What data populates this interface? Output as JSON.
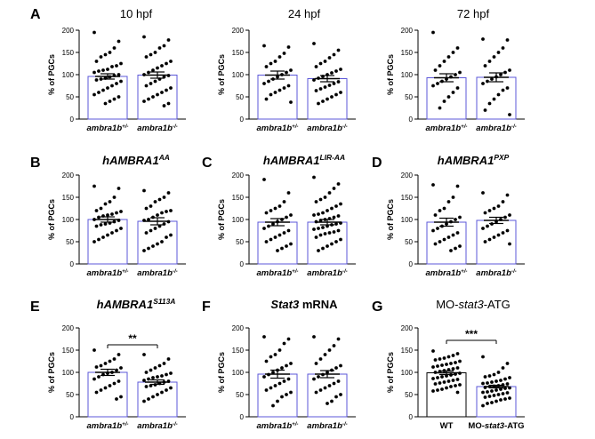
{
  "figure": {
    "panels": [
      {
        "id": "A",
        "letter": "A",
        "title": [
          {
            "t": "10 hpf"
          }
        ],
        "title_style": "plain",
        "categories": [
          {
            "base": "ambra1b",
            "sup": "+/-"
          },
          {
            "base": "ambra1b",
            "sup": "-/-"
          }
        ],
        "significance": null
      },
      {
        "id": "A2",
        "letter": "",
        "title": [
          {
            "t": "24 hpf"
          }
        ],
        "title_style": "plain",
        "categories": [
          {
            "base": "ambra1b",
            "sup": "+/-"
          },
          {
            "base": "ambra1b",
            "sup": "-/-"
          }
        ],
        "significance": null
      },
      {
        "id": "A3",
        "letter": "",
        "title": [
          {
            "t": "72 hpf"
          }
        ],
        "title_style": "plain",
        "categories": [
          {
            "base": "ambra1b",
            "sup": "+/-"
          },
          {
            "base": "ambra1b",
            "sup": "-/-"
          }
        ],
        "significance": null
      },
      {
        "id": "B",
        "letter": "B",
        "title": [
          {
            "t": "hAMBRA1"
          },
          {
            "t": "AA",
            "sup": true
          }
        ],
        "title_style": "italic-bold",
        "categories": [
          {
            "base": "ambra1b",
            "sup": "+/-"
          },
          {
            "base": "ambra1b",
            "sup": "-/-"
          }
        ],
        "significance": null
      },
      {
        "id": "C",
        "letter": "C",
        "title": [
          {
            "t": "hAMBRA1"
          },
          {
            "t": "LIR-AA",
            "sup": true
          }
        ],
        "title_style": "italic-bold",
        "categories": [
          {
            "base": "ambra1b",
            "sup": "+/-"
          },
          {
            "base": "ambra1b",
            "sup": "-/-"
          }
        ],
        "significance": null
      },
      {
        "id": "D",
        "letter": "D",
        "title": [
          {
            "t": "hAMBRA1"
          },
          {
            "t": "PXP",
            "sup": true
          }
        ],
        "title_style": "italic-bold",
        "categories": [
          {
            "base": "ambra1b",
            "sup": "+/-"
          },
          {
            "base": "ambra1b",
            "sup": "-/-"
          }
        ],
        "significance": null
      },
      {
        "id": "E",
        "letter": "E",
        "title": [
          {
            "t": "hAMBRA1"
          },
          {
            "t": "S113A",
            "sup": true
          }
        ],
        "title_style": "italic-bold",
        "categories": [
          {
            "base": "ambra1b",
            "sup": "+/-"
          },
          {
            "base": "ambra1b",
            "sup": "-/-"
          }
        ],
        "significance": "**"
      },
      {
        "id": "F",
        "letter": "F",
        "title": [
          {
            "t": "Stat3",
            "it": true
          },
          {
            "t": " mRNA"
          }
        ],
        "title_style": "bold",
        "categories": [
          {
            "base": "ambra1b",
            "sup": "+/-"
          },
          {
            "base": "ambra1b",
            "sup": "-/-"
          }
        ],
        "significance": null
      },
      {
        "id": "G",
        "letter": "G",
        "title": [
          {
            "t": "MO-"
          },
          {
            "t": "stat3",
            "it": true
          },
          {
            "t": "-ATG"
          }
        ],
        "title_style": "plain",
        "categories": [
          {
            "base": "WT",
            "upright": true
          },
          {
            "segments": [
              {
                "t": "MO-"
              },
              {
                "t": "stat3",
                "it": true
              },
              {
                "t": "-ATG"
              }
            ],
            "upright": true
          }
        ],
        "significance": "***"
      }
    ]
  },
  "chart_data": [
    {
      "panel": "A",
      "type": "scatter",
      "title": "10 hpf",
      "xlabel": "",
      "ylabel": "% of PGCs",
      "ylim": [
        0,
        200
      ],
      "yticks": [
        0,
        50,
        100,
        150,
        200
      ],
      "grid": false,
      "categories": [
        "ambra1b+/-",
        "ambra1b-/-"
      ],
      "bar_means": [
        96,
        99
      ],
      "sem": [
        6,
        7
      ],
      "series": [
        {
          "values": [
            195,
            175,
            160,
            150,
            145,
            140,
            130,
            125,
            120,
            118,
            112,
            110,
            108,
            105,
            100,
            98,
            95,
            92,
            90,
            88,
            85,
            80,
            75,
            70,
            65,
            60,
            55,
            50,
            45,
            40,
            35
          ]
        },
        {
          "values": [
            185,
            178,
            165,
            160,
            150,
            145,
            140,
            130,
            125,
            120,
            115,
            110,
            105,
            100,
            98,
            95,
            90,
            85,
            80,
            75,
            70,
            65,
            60,
            55,
            50,
            45,
            40,
            35,
            30
          ]
        }
      ]
    },
    {
      "panel": "A2",
      "type": "scatter",
      "title": "24 hpf",
      "xlabel": "",
      "ylabel": "% of PGCs",
      "ylim": [
        0,
        200
      ],
      "yticks": [
        0,
        50,
        100,
        150,
        200
      ],
      "grid": false,
      "categories": [
        "ambra1b+/-",
        "ambra1b-/-"
      ],
      "bar_means": [
        99,
        91
      ],
      "sem": [
        9,
        7
      ],
      "series": [
        {
          "values": [
            165,
            162,
            148,
            140,
            130,
            125,
            118,
            110,
            105,
            100,
            95,
            90,
            85,
            80,
            75,
            70,
            65,
            60,
            55,
            45,
            38
          ]
        },
        {
          "values": [
            170,
            155,
            145,
            138,
            130,
            125,
            118,
            112,
            108,
            104,
            100,
            96,
            92,
            88,
            84,
            80,
            76,
            72,
            68,
            64,
            60,
            55,
            50,
            45,
            40,
            35
          ]
        }
      ]
    },
    {
      "panel": "A3",
      "type": "scatter",
      "title": "72 hpf",
      "xlabel": "",
      "ylabel": "% of PGCs",
      "ylim": [
        0,
        200
      ],
      "yticks": [
        0,
        50,
        100,
        150,
        200
      ],
      "grid": false,
      "categories": [
        "ambra1b+/-",
        "ambra1b-/-"
      ],
      "bar_means": [
        93,
        94
      ],
      "sem": [
        9,
        10
      ],
      "series": [
        {
          "values": [
            195,
            160,
            150,
            140,
            130,
            120,
            110,
            105,
            100,
            95,
            90,
            85,
            80,
            75,
            70,
            60,
            50,
            40,
            25
          ]
        },
        {
          "values": [
            180,
            178,
            160,
            150,
            140,
            130,
            120,
            110,
            105,
            100,
            95,
            90,
            85,
            80,
            70,
            65,
            55,
            45,
            35,
            20,
            10
          ]
        }
      ]
    },
    {
      "panel": "B",
      "type": "scatter",
      "title": "hAMBRA1AA",
      "xlabel": "",
      "ylabel": "% of PGCs",
      "ylim": [
        0,
        200
      ],
      "yticks": [
        0,
        50,
        100,
        150,
        200
      ],
      "grid": false,
      "categories": [
        "ambra1b+/-",
        "ambra1b-/-"
      ],
      "bar_means": [
        100,
        96
      ],
      "sem": [
        6,
        8
      ],
      "series": [
        {
          "values": [
            175,
            170,
            150,
            140,
            135,
            125,
            120,
            118,
            115,
            112,
            110,
            108,
            105,
            100,
            98,
            95,
            92,
            90,
            88,
            85,
            80,
            75,
            70,
            65,
            60,
            55,
            50
          ]
        },
        {
          "values": [
            165,
            160,
            150,
            145,
            140,
            130,
            125,
            120,
            118,
            115,
            110,
            105,
            100,
            98,
            95,
            90,
            85,
            80,
            75,
            70,
            65,
            60,
            50,
            45,
            40,
            35,
            30
          ]
        }
      ]
    },
    {
      "panel": "C",
      "type": "scatter",
      "title": "hAMBRA1LIR-AA",
      "xlabel": "",
      "ylabel": "% of PGCs",
      "ylim": [
        0,
        200
      ],
      "yticks": [
        0,
        50,
        100,
        150,
        200
      ],
      "grid": false,
      "categories": [
        "ambra1b+/-",
        "ambra1b-/-"
      ],
      "bar_means": [
        94,
        94
      ],
      "sem": [
        8,
        6
      ],
      "series": [
        {
          "values": [
            190,
            160,
            140,
            130,
            125,
            120,
            115,
            110,
            105,
            100,
            95,
            90,
            85,
            80,
            75,
            70,
            65,
            60,
            55,
            50,
            45,
            40,
            35,
            30
          ]
        },
        {
          "values": [
            195,
            180,
            170,
            160,
            150,
            145,
            140,
            135,
            130,
            125,
            120,
            115,
            112,
            110,
            108,
            105,
            102,
            100,
            98,
            95,
            92,
            90,
            88,
            85,
            82,
            80,
            78,
            75,
            72,
            70,
            68,
            65,
            60,
            55,
            50,
            45,
            40,
            35,
            30
          ]
        }
      ]
    },
    {
      "panel": "D",
      "type": "scatter",
      "title": "hAMBRA1PXP",
      "xlabel": "",
      "ylabel": "% of PGCs",
      "ylim": [
        0,
        200
      ],
      "yticks": [
        0,
        50,
        100,
        150,
        200
      ],
      "grid": false,
      "categories": [
        "ambra1b+/-",
        "ambra1b-/-"
      ],
      "bar_means": [
        94,
        98
      ],
      "sem": [
        9,
        7
      ],
      "series": [
        {
          "values": [
            178,
            175,
            150,
            140,
            125,
            120,
            110,
            105,
            100,
            95,
            90,
            85,
            80,
            75,
            70,
            65,
            60,
            55,
            50,
            45,
            40,
            35,
            30
          ]
        },
        {
          "values": [
            160,
            155,
            140,
            130,
            125,
            120,
            115,
            110,
            105,
            100,
            95,
            90,
            85,
            80,
            75,
            70,
            65,
            60,
            55,
            50,
            45
          ]
        }
      ]
    },
    {
      "panel": "E",
      "type": "scatter",
      "title": "hAMBRA1S113A",
      "xlabel": "",
      "ylabel": "% of PGCs",
      "ylim": [
        0,
        200
      ],
      "yticks": [
        0,
        50,
        100,
        150,
        200
      ],
      "grid": false,
      "categories": [
        "ambra1b+/-",
        "ambra1b-/-"
      ],
      "bar_means": [
        100,
        78
      ],
      "sem": [
        7,
        5
      ],
      "series": [
        {
          "values": [
            150,
            140,
            130,
            125,
            120,
            115,
            112,
            110,
            105,
            100,
            98,
            95,
            90,
            85,
            80,
            75,
            70,
            65,
            60,
            55,
            45,
            40
          ]
        },
        {
          "values": [
            140,
            130,
            120,
            115,
            110,
            105,
            100,
            98,
            95,
            92,
            90,
            88,
            85,
            82,
            80,
            78,
            75,
            72,
            70,
            68,
            65,
            60,
            55,
            50,
            45,
            40,
            35
          ]
        }
      ]
    },
    {
      "panel": "F",
      "type": "scatter",
      "title": "Stat3 mRNA",
      "xlabel": "",
      "ylabel": "% of PGCs",
      "ylim": [
        0,
        200
      ],
      "yticks": [
        0,
        50,
        100,
        150,
        200
      ],
      "grid": false,
      "categories": [
        "ambra1b+/-",
        "ambra1b-/-"
      ],
      "bar_means": [
        96,
        96
      ],
      "sem": [
        9,
        8
      ],
      "series": [
        {
          "values": [
            180,
            175,
            165,
            150,
            140,
            135,
            125,
            120,
            115,
            110,
            105,
            100,
            95,
            90,
            85,
            80,
            75,
            70,
            65,
            60,
            55,
            50,
            45,
            35,
            25
          ]
        },
        {
          "values": [
            180,
            175,
            160,
            150,
            140,
            130,
            120,
            115,
            110,
            105,
            100,
            95,
            90,
            85,
            80,
            75,
            70,
            65,
            60,
            55,
            50,
            45,
            35,
            30
          ]
        }
      ]
    },
    {
      "panel": "G",
      "type": "scatter",
      "title": "MO-stat3-ATG",
      "xlabel": "",
      "ylabel": "% of PGCs",
      "ylim": [
        0,
        200
      ],
      "yticks": [
        0,
        50,
        100,
        150,
        200
      ],
      "grid": false,
      "categories": [
        "WT",
        "MO-stat3-ATG"
      ],
      "bar_means": [
        99,
        68
      ],
      "sem": [
        4,
        3
      ],
      "series": [
        {
          "values": [
            148,
            142,
            138,
            135,
            132,
            130,
            128,
            125,
            122,
            120,
            118,
            116,
            114,
            112,
            110,
            108,
            106,
            104,
            102,
            100,
            98,
            96,
            94,
            92,
            90,
            88,
            86,
            84,
            82,
            80,
            78,
            76,
            74,
            72,
            70,
            68,
            65,
            62,
            60,
            58,
            55
          ]
        },
        {
          "values": [
            135,
            120,
            110,
            100,
            95,
            92,
            90,
            88,
            85,
            82,
            80,
            78,
            76,
            75,
            74,
            72,
            70,
            69,
            68,
            66,
            65,
            64,
            62,
            60,
            58,
            56,
            55,
            54,
            52,
            50,
            48,
            46,
            44,
            42,
            40,
            38,
            35,
            32,
            30,
            25
          ]
        }
      ]
    }
  ]
}
